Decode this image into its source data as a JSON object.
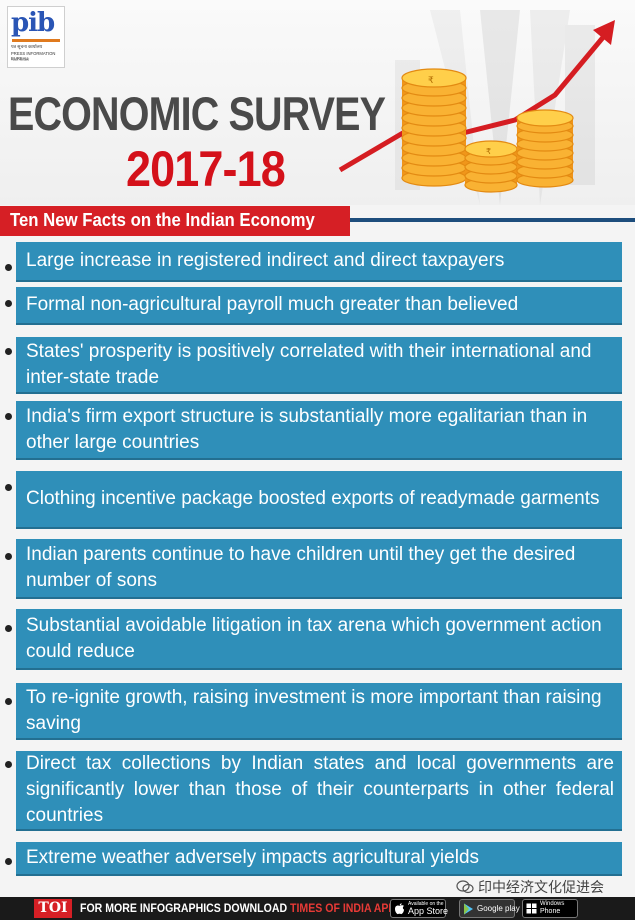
{
  "logo": {
    "mark": "pib",
    "line1": "पत्र सूचना कार्यालय",
    "line2": "PRESS INFORMATION BUREAU",
    "line3": "भारत सरकार"
  },
  "title": "ECONOMIC SURVEY",
  "year": "2017-18",
  "subtitle": "Ten New Facts on the Indian Economy",
  "facts": [
    "Large increase in registered indirect and direct taxpayers",
    "Formal non-agricultural payroll much greater than believed",
    "States' prosperity is positively correlated with their international and inter-state trade",
    "India's firm export structure is substantially more egalitarian than in other large countries",
    "Clothing incentive package boosted exports of readymade garments",
    "Indian parents continue to have children until they get the desired number of sons",
    "Substantial avoidable litigation in tax arena which government action could reduce",
    "To re-ignite growth, raising investment is more important than raising saving",
    "Direct tax collections by Indian states and local governments are significantly lower than those of their counterparts in other federal countries",
    "Extreme weather adversely impacts agricultural yields"
  ],
  "footer": {
    "toi": "TOI",
    "text": "FOR MORE INFOGRAPHICS DOWNLOAD",
    "app": "TIMES OF INDIA APP",
    "appstore_small": "Available on the",
    "appstore_big": "App Store",
    "googleplay_big": "Google play",
    "windows_small": "Windows",
    "windows_big": "Phone"
  },
  "watermark": "印中经济文化促进会",
  "colors": {
    "fact_bg": "#2f8fb9",
    "accent_red": "#d61f25",
    "title_gray": "#4a4a4a",
    "coin_gold": "#f5a524"
  },
  "icons": [
    "coin-stack-icon",
    "rupee-icon",
    "growth-arrow-icon",
    "apple-icon",
    "google-play-icon",
    "windows-icon",
    "wechat-icon"
  ]
}
